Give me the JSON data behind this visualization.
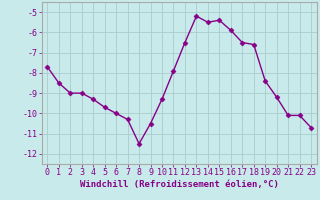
{
  "x": [
    0,
    1,
    2,
    3,
    4,
    5,
    6,
    7,
    8,
    9,
    10,
    11,
    12,
    13,
    14,
    15,
    16,
    17,
    18,
    19,
    20,
    21,
    22,
    23
  ],
  "y": [
    -7.7,
    -8.5,
    -9.0,
    -9.0,
    -9.3,
    -9.7,
    -10.0,
    -10.3,
    -11.5,
    -10.5,
    -9.3,
    -7.9,
    -6.5,
    -5.2,
    -5.5,
    -5.4,
    -5.9,
    -6.5,
    -6.6,
    -8.4,
    -9.2,
    -10.1,
    -10.1,
    -10.7
  ],
  "line_color": "#880088",
  "marker": "D",
  "marker_size": 2.5,
  "bg_color": "#c8eaea",
  "grid_color": "#aacccc",
  "xlabel": "Windchill (Refroidissement éolien,°C)",
  "xlim": [
    -0.5,
    23.5
  ],
  "ylim": [
    -12.5,
    -4.5
  ],
  "yticks": [
    -12,
    -11,
    -10,
    -9,
    -8,
    -7,
    -6,
    -5
  ],
  "xticks": [
    0,
    1,
    2,
    3,
    4,
    5,
    6,
    7,
    8,
    9,
    10,
    11,
    12,
    13,
    14,
    15,
    16,
    17,
    18,
    19,
    20,
    21,
    22,
    23
  ],
  "tick_color": "#880088",
  "label_fontsize": 6.5,
  "tick_fontsize": 6,
  "line_width": 1.0,
  "spine_color": "#aaaaaa"
}
